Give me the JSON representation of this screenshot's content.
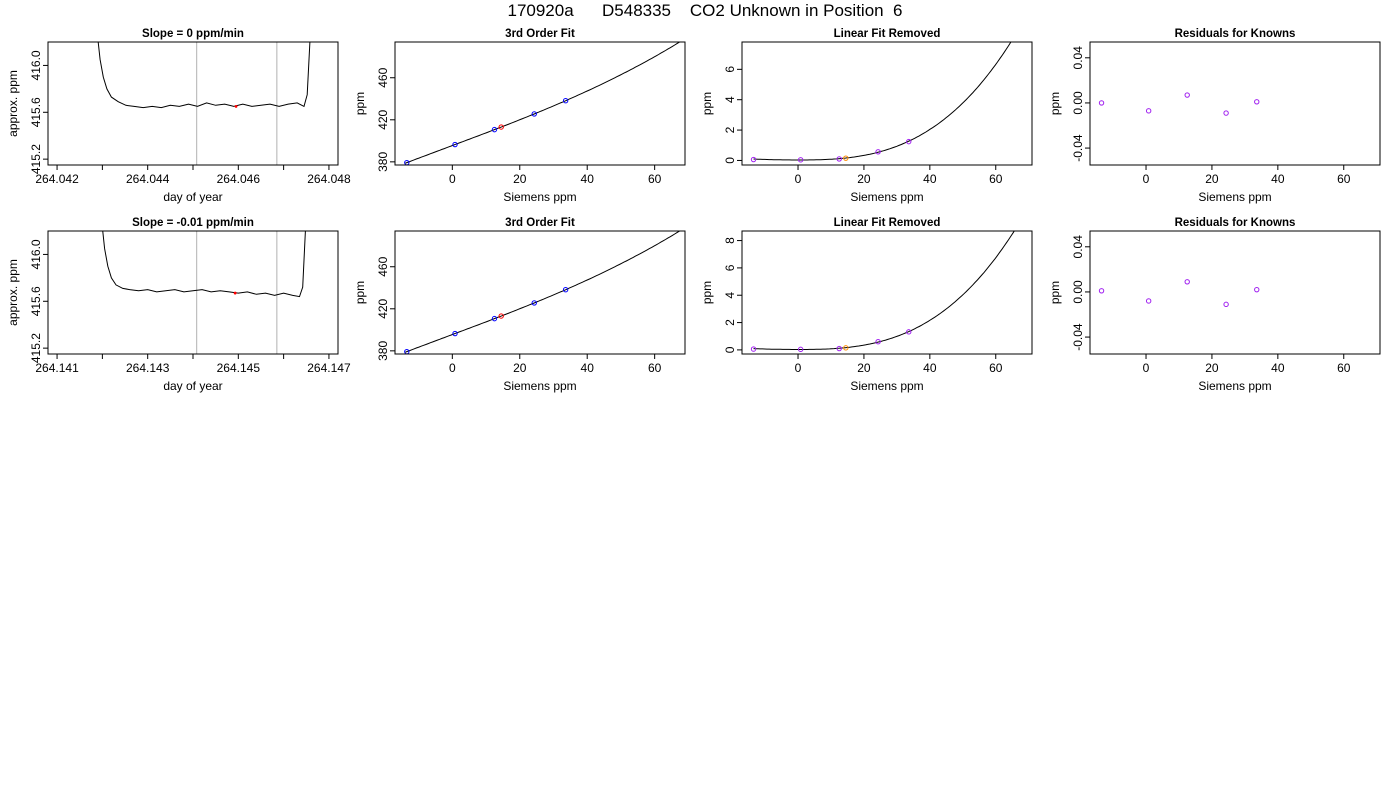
{
  "page": {
    "title": "170920a      D548335    CO2 Unknown in Position  6"
  },
  "colors": {
    "line": "#000000",
    "marker_blue": "#0000ff",
    "marker_red": "#ff0000",
    "marker_purple": "#a020f0",
    "marker_orange": "#ff8c00",
    "vline": "#bebebe"
  },
  "chart_data": [
    {
      "id": "r1c1",
      "type": "line",
      "title": "Slope =  0  ppm/min",
      "xlabel": "day of year",
      "ylabel": "approx. ppm",
      "xlim": [
        264.0418,
        264.0482
      ],
      "ylim": [
        415.15,
        416.2
      ],
      "xticks": [
        {
          "v": 264.042,
          "label": "264.042"
        },
        {
          "v": 264.043,
          "label": ""
        },
        {
          "v": 264.044,
          "label": "264.044"
        },
        {
          "v": 264.045,
          "label": ""
        },
        {
          "v": 264.046,
          "label": "264.046"
        },
        {
          "v": 264.047,
          "label": ""
        },
        {
          "v": 264.048,
          "label": "264.048"
        }
      ],
      "yticks": [
        {
          "v": 415.2,
          "label": "415.2"
        },
        {
          "v": 415.6,
          "label": "415.6"
        },
        {
          "v": 416.0,
          "label": "416.0"
        }
      ],
      "vlines": [
        264.04508,
        264.04685
      ],
      "series": [
        {
          "x": [
            264.0428,
            264.04288,
            264.04295,
            264.04302,
            264.0431,
            264.0432,
            264.04335,
            264.04352,
            264.0437,
            264.0439,
            264.0441,
            264.0443,
            264.0445,
            264.0447,
            264.0449,
            264.0451,
            264.0453,
            264.0455,
            264.0457,
            264.0459,
            264.0461,
            264.0463,
            264.0465,
            264.0467,
            264.0469,
            264.0471,
            264.0473,
            264.04745,
            264.04752,
            264.04758,
            264.04765
          ],
          "y": [
            416.7,
            416.3,
            416.05,
            415.9,
            415.8,
            415.73,
            415.69,
            415.66,
            415.65,
            415.64,
            415.65,
            415.64,
            415.66,
            415.65,
            415.67,
            415.65,
            415.68,
            415.66,
            415.67,
            415.65,
            415.67,
            415.65,
            415.66,
            415.67,
            415.65,
            415.67,
            415.68,
            415.65,
            415.75,
            416.2,
            416.9
          ]
        }
      ],
      "markers": [
        {
          "x": 264.04595,
          "y": 415.65,
          "color": "red",
          "shape": "dot"
        }
      ]
    },
    {
      "id": "r1c2",
      "type": "line",
      "title": "3rd Order Fit",
      "xlabel": "Siemens ppm",
      "ylabel": "ppm",
      "xlim": [
        -17,
        69
      ],
      "ylim": [
        377,
        494
      ],
      "xticks": [
        {
          "v": 0,
          "label": "0"
        },
        {
          "v": 20,
          "label": "20"
        },
        {
          "v": 40,
          "label": "40"
        },
        {
          "v": 60,
          "label": "60"
        }
      ],
      "yticks": [
        {
          "v": 380,
          "label": "380"
        },
        {
          "v": 420,
          "label": "420"
        },
        {
          "v": 460,
          "label": "460"
        }
      ],
      "curve": {
        "x0": -14,
        "x1": 68,
        "a": 395.5,
        "b": 1.2,
        "c": 0.0003,
        "d": 5.3e-05
      },
      "points": [
        {
          "x": -13.5,
          "color": "blue"
        },
        {
          "x": 0.8,
          "color": "blue"
        },
        {
          "x": 12.5,
          "color": "blue"
        },
        {
          "x": 14.5,
          "color": "red"
        },
        {
          "x": 24.3,
          "color": "blue"
        },
        {
          "x": 33.6,
          "color": "blue"
        }
      ]
    },
    {
      "id": "r1c3",
      "type": "line",
      "title": "Linear Fit Removed",
      "xlabel": "Siemens ppm",
      "ylabel": "ppm",
      "xlim": [
        -17,
        71
      ],
      "ylim": [
        -0.3,
        7.8
      ],
      "xticks": [
        {
          "v": 0,
          "label": "0"
        },
        {
          "v": 20,
          "label": "20"
        },
        {
          "v": 40,
          "label": "40"
        },
        {
          "v": 60,
          "label": "60"
        }
      ],
      "yticks": [
        {
          "v": 0,
          "label": "0"
        },
        {
          "v": 2,
          "label": "2"
        },
        {
          "v": 4,
          "label": "4"
        },
        {
          "v": 6,
          "label": "6"
        }
      ],
      "curve": {
        "x0": -13.5,
        "x1": 68,
        "cubic": 2.45e-05,
        "quad": 0.00032,
        "vertex": 0.5,
        "offset": 0.03
      },
      "points": [
        {
          "x": -13.5,
          "y": 0.06,
          "color": "purple"
        },
        {
          "x": 0.8,
          "y": 0.04,
          "color": "purple"
        },
        {
          "x": 12.5,
          "y": 0.1,
          "color": "purple"
        },
        {
          "x": 14.5,
          "y": 0.15,
          "color": "orange"
        },
        {
          "x": 24.3,
          "y": 0.57,
          "color": "purple"
        },
        {
          "x": 33.6,
          "y": 1.24,
          "color": "purple"
        }
      ]
    },
    {
      "id": "r1c4",
      "type": "scatter",
      "title": "Residuals for Knowns",
      "xlabel": "Siemens ppm",
      "ylabel": "ppm",
      "xlim": [
        -17,
        71
      ],
      "ylim": [
        -0.055,
        0.054
      ],
      "xticks": [
        {
          "v": 0,
          "label": "0"
        },
        {
          "v": 20,
          "label": "20"
        },
        {
          "v": 40,
          "label": "40"
        },
        {
          "v": 60,
          "label": "60"
        }
      ],
      "yticks": [
        {
          "v": -0.04,
          "label": "-0.04"
        },
        {
          "v": 0.0,
          "label": "0.00"
        },
        {
          "v": 0.04,
          "label": "0.04"
        }
      ],
      "points": [
        {
          "x": -13.5,
          "y": 0.0,
          "color": "purple"
        },
        {
          "x": 0.8,
          "y": -0.007,
          "color": "purple"
        },
        {
          "x": 12.5,
          "y": 0.007,
          "color": "purple"
        },
        {
          "x": 24.3,
          "y": -0.009,
          "color": "purple"
        },
        {
          "x": 33.6,
          "y": 0.001,
          "color": "purple"
        }
      ]
    },
    {
      "id": "r2c1",
      "type": "line",
      "title": "Slope =  -0.01  ppm/min",
      "xlabel": "day of year",
      "ylabel": "approx. ppm",
      "xlim": [
        264.1408,
        264.1472
      ],
      "ylim": [
        415.15,
        416.2
      ],
      "xticks": [
        {
          "v": 264.141,
          "label": "264.141"
        },
        {
          "v": 264.142,
          "label": ""
        },
        {
          "v": 264.143,
          "label": "264.143"
        },
        {
          "v": 264.144,
          "label": ""
        },
        {
          "v": 264.145,
          "label": "264.145"
        },
        {
          "v": 264.146,
          "label": ""
        },
        {
          "v": 264.147,
          "label": "264.147"
        }
      ],
      "yticks": [
        {
          "v": 415.2,
          "label": "415.2"
        },
        {
          "v": 415.6,
          "label": "415.6"
        },
        {
          "v": 416.0,
          "label": "416.0"
        }
      ],
      "vlines": [
        264.14408,
        264.14585
      ],
      "series": [
        {
          "x": [
            264.1419,
            264.14198,
            264.14205,
            264.14212,
            264.1422,
            264.1423,
            264.14245,
            264.1426,
            264.1428,
            264.143,
            264.1432,
            264.1434,
            264.1436,
            264.1438,
            264.144,
            264.1442,
            264.1444,
            264.1446,
            264.1448,
            264.145,
            264.1452,
            264.1454,
            264.1456,
            264.1458,
            264.146,
            264.1462,
            264.14635,
            264.14642,
            264.14648,
            264.14655
          ],
          "y": [
            416.7,
            416.3,
            416.05,
            415.9,
            415.8,
            415.74,
            415.71,
            415.7,
            415.69,
            415.7,
            415.68,
            415.69,
            415.7,
            415.68,
            415.69,
            415.7,
            415.68,
            415.69,
            415.68,
            415.67,
            415.68,
            415.66,
            415.67,
            415.65,
            415.67,
            415.65,
            415.64,
            415.72,
            416.2,
            416.9
          ]
        }
      ],
      "markers": [
        {
          "x": 264.14493,
          "y": 415.67,
          "color": "red",
          "shape": "dot"
        }
      ]
    },
    {
      "id": "r2c2",
      "type": "line",
      "title": "3rd Order Fit",
      "xlabel": "Siemens ppm",
      "ylabel": "ppm",
      "xlim": [
        -17,
        69
      ],
      "ylim": [
        377,
        494
      ],
      "xticks": [
        {
          "v": 0,
          "label": "0"
        },
        {
          "v": 20,
          "label": "20"
        },
        {
          "v": 40,
          "label": "40"
        },
        {
          "v": 60,
          "label": "60"
        }
      ],
      "yticks": [
        {
          "v": 380,
          "label": "380"
        },
        {
          "v": 420,
          "label": "420"
        },
        {
          "v": 460,
          "label": "460"
        }
      ],
      "curve": {
        "x0": -14,
        "x1": 68,
        "a": 395.5,
        "b": 1.2,
        "c": 0.0003,
        "d": 5.3e-05
      },
      "points": [
        {
          "x": -13.5,
          "color": "blue"
        },
        {
          "x": 0.8,
          "color": "blue"
        },
        {
          "x": 12.5,
          "color": "blue"
        },
        {
          "x": 14.5,
          "color": "red"
        },
        {
          "x": 24.3,
          "color": "blue"
        },
        {
          "x": 33.6,
          "color": "blue"
        }
      ]
    },
    {
      "id": "r2c3",
      "type": "line",
      "title": "Linear Fit Removed",
      "xlabel": "Siemens ppm",
      "ylabel": "ppm",
      "xlim": [
        -17,
        71
      ],
      "ylim": [
        -0.3,
        8.7
      ],
      "xticks": [
        {
          "v": 0,
          "label": "0"
        },
        {
          "v": 20,
          "label": "20"
        },
        {
          "v": 40,
          "label": "40"
        },
        {
          "v": 60,
          "label": "60"
        }
      ],
      "yticks": [
        {
          "v": 0,
          "label": "0"
        },
        {
          "v": 2,
          "label": "2"
        },
        {
          "v": 4,
          "label": "4"
        },
        {
          "v": 6,
          "label": "6"
        },
        {
          "v": 8,
          "label": "8"
        }
      ],
      "curve": {
        "x0": -13.5,
        "x1": 68,
        "cubic": 2.65e-05,
        "quad": 0.00032,
        "vertex": 0.5,
        "offset": 0.03
      },
      "points": [
        {
          "x": -13.5,
          "y": 0.06,
          "color": "purple"
        },
        {
          "x": 0.8,
          "y": 0.04,
          "color": "purple"
        },
        {
          "x": 12.5,
          "y": 0.1,
          "color": "purple"
        },
        {
          "x": 14.5,
          "y": 0.15,
          "color": "orange"
        },
        {
          "x": 24.3,
          "y": 0.6,
          "color": "purple"
        },
        {
          "x": 33.6,
          "y": 1.32,
          "color": "purple"
        }
      ]
    },
    {
      "id": "r2c4",
      "type": "scatter",
      "title": "Residuals for Knowns",
      "xlabel": "Siemens ppm",
      "ylabel": "ppm",
      "xlim": [
        -17,
        71
      ],
      "ylim": [
        -0.055,
        0.054
      ],
      "xticks": [
        {
          "v": 0,
          "label": "0"
        },
        {
          "v": 20,
          "label": "20"
        },
        {
          "v": 40,
          "label": "40"
        },
        {
          "v": 60,
          "label": "60"
        }
      ],
      "yticks": [
        {
          "v": -0.04,
          "label": "-0.04"
        },
        {
          "v": 0.0,
          "label": "0.00"
        },
        {
          "v": 0.04,
          "label": "0.04"
        }
      ],
      "points": [
        {
          "x": -13.5,
          "y": 0.001,
          "color": "purple"
        },
        {
          "x": 0.8,
          "y": -0.008,
          "color": "purple"
        },
        {
          "x": 12.5,
          "y": 0.009,
          "color": "purple"
        },
        {
          "x": 24.3,
          "y": -0.011,
          "color": "purple"
        },
        {
          "x": 33.6,
          "y": 0.002,
          "color": "purple"
        }
      ]
    }
  ]
}
